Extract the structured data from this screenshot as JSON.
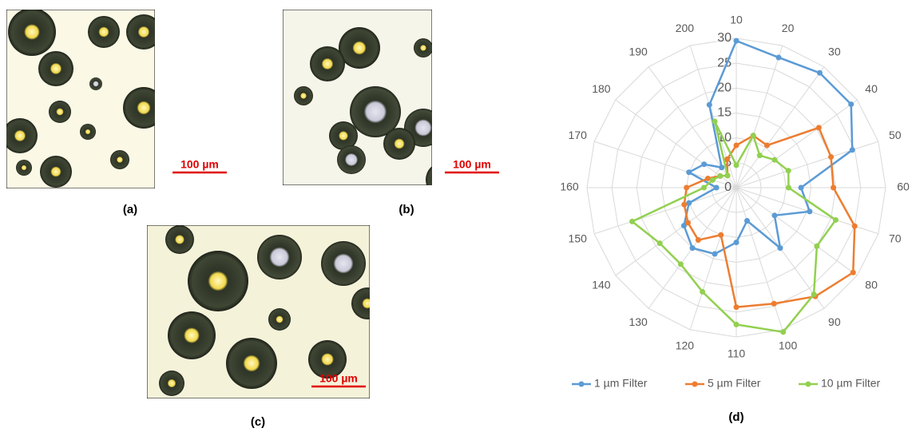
{
  "panels": [
    {
      "label": "(a)",
      "scale_bar": "100 µm"
    },
    {
      "label": "(b)",
      "scale_bar": "100 µm"
    },
    {
      "label": "(c)",
      "scale_bar": "100 µm"
    }
  ],
  "chart_data": {
    "type": "radar",
    "label": "(d)",
    "categories": [
      "10",
      "20",
      "30",
      "40",
      "50",
      "60",
      "70",
      "80",
      "90",
      "100",
      "110",
      "120",
      "130",
      "140",
      "150",
      "160",
      "170",
      "180",
      "190",
      "200"
    ],
    "rlim": [
      0,
      30
    ],
    "rticks": [
      0,
      5,
      10,
      15,
      20,
      25,
      30
    ],
    "grid": true,
    "legend": "bottom",
    "series": [
      {
        "name": "1 µm Filter",
        "color": "#5b9bd5",
        "values": [
          29.5,
          27.5,
          28.5,
          28.5,
          24.5,
          13,
          15.5,
          9.5,
          15,
          7,
          11,
          14,
          15,
          13,
          10,
          4,
          10,
          8,
          5,
          17.5
        ]
      },
      {
        "name": "5 µm Filter",
        "color": "#ed7d31",
        "values": [
          8.5,
          11,
          10.5,
          20.5,
          20,
          19.5,
          25,
          29,
          27,
          24.5,
          24,
          10,
          13,
          12,
          11,
          10,
          6,
          4,
          3,
          6
        ]
      },
      {
        "name": "10 µm Filter",
        "color": "#92d050",
        "values": [
          4.5,
          11,
          8,
          9.5,
          11,
          10.5,
          21,
          20,
          26.5,
          30.5,
          27.5,
          22,
          19,
          19,
          22,
          6.5,
          5,
          4,
          3,
          14
        ]
      }
    ]
  }
}
